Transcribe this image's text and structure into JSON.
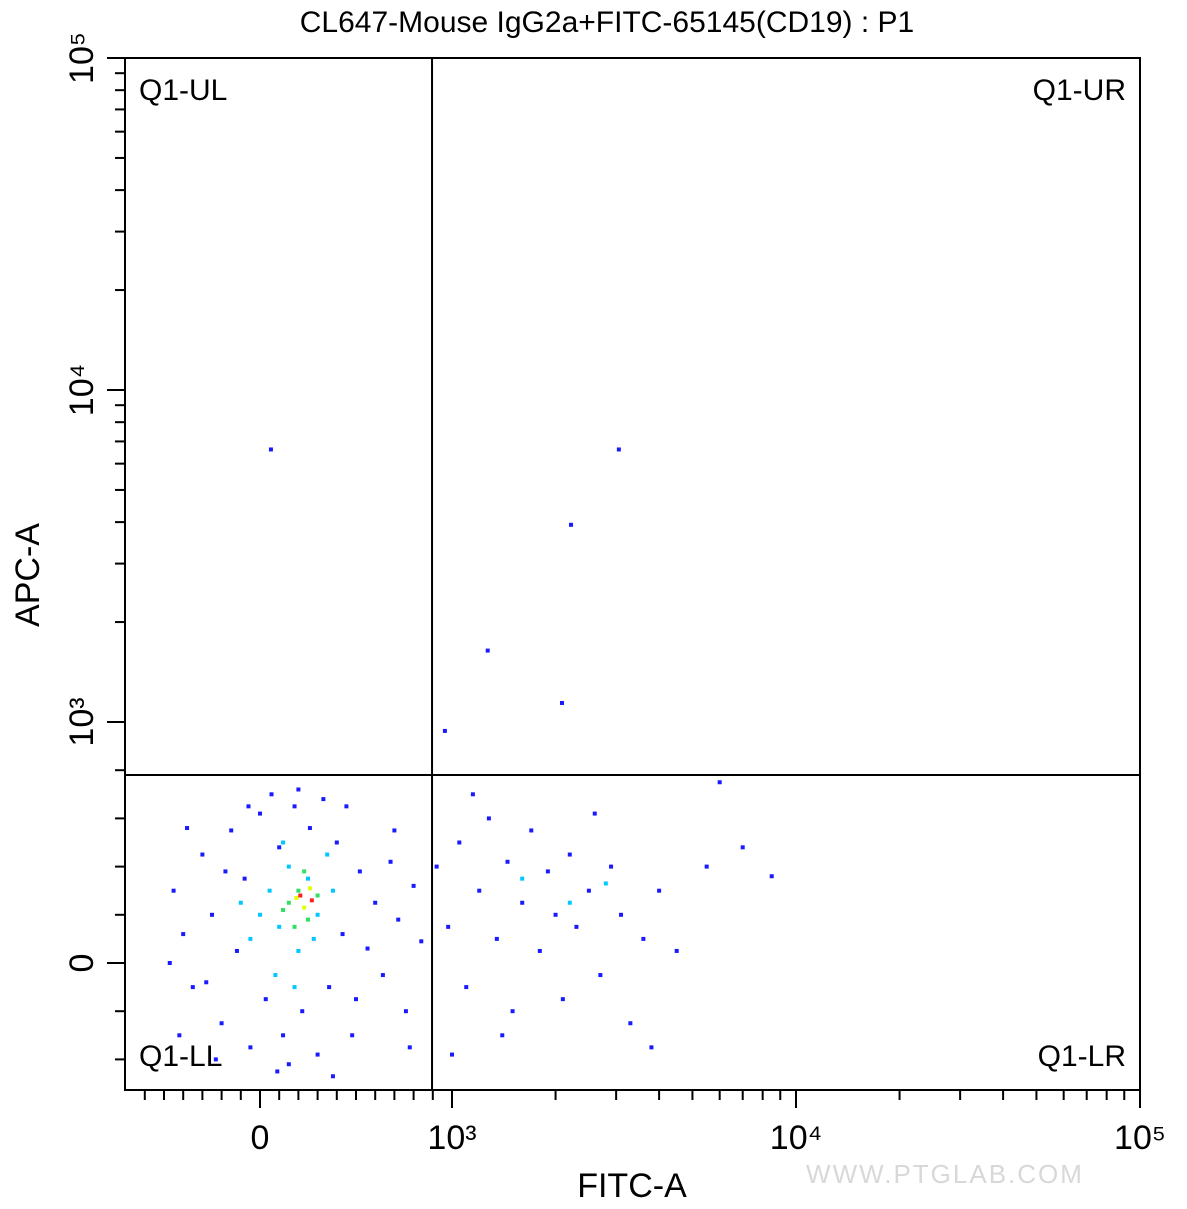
{
  "chart_data": {
    "type": "scatter",
    "scale": "logicle",
    "title": "CL647-Mouse IgG2a+FITC-65145(CD19) : P1",
    "x_label": "FITC-A",
    "y_label": "APC-A",
    "watermark": "WWW.PTGLAB.COM",
    "xlim": [
      -700,
      100000
    ],
    "ylim": [
      -527,
      100000
    ],
    "xticks": [
      0,
      {
        "value": 1000,
        "label": "10³"
      },
      {
        "value": 10000,
        "label": "10⁴"
      },
      {
        "value": 100000,
        "label": "10⁵"
      }
    ],
    "yticks": [
      0,
      {
        "value": 1000,
        "label": "10³"
      },
      {
        "value": 10000,
        "label": "10⁴"
      },
      {
        "value": 100000,
        "label": "10⁵"
      }
    ],
    "xminorticks": [
      -600,
      -500,
      -400,
      -300,
      -200,
      -100,
      100,
      200,
      300,
      400,
      500,
      600,
      700,
      800,
      900,
      2000,
      3000,
      4000,
      5000,
      6000,
      7000,
      8000,
      9000,
      20000,
      30000,
      40000,
      50000,
      60000,
      70000,
      80000,
      90000
    ],
    "yminorticks": [
      -400,
      -200,
      200,
      400,
      600,
      800,
      2000,
      3000,
      4000,
      5000,
      6000,
      7000,
      8000,
      9000,
      20000,
      30000,
      40000,
      50000,
      60000,
      70000,
      80000,
      90000
    ],
    "gates": {
      "x": 896,
      "y": 780
    },
    "quadrants": {
      "ul": "Q1-UL",
      "ur": "Q1-UR",
      "ll": "Q1-LL",
      "lr": "Q1-LR"
    },
    "series": [
      {
        "color": "#1a1aff",
        "x": [
          -450,
          -400,
          -350,
          -300,
          -250,
          -200,
          -150,
          -120,
          -80,
          -50,
          0,
          30,
          60,
          100,
          120,
          150,
          180,
          220,
          260,
          300,
          330,
          360,
          400,
          430,
          480,
          520,
          560,
          600,
          640,
          680,
          720,
          760,
          800,
          840,
          -420,
          -380,
          -280,
          -180,
          -60,
          90,
          200,
          450,
          500,
          700,
          780,
          -470,
          380,
          -230,
          920,
          980,
          1050,
          1100,
          1200,
          1280,
          1350,
          1450,
          1500,
          1600,
          1700,
          1800,
          1900,
          2000,
          2100,
          2200,
          2300,
          2500,
          2700,
          2900,
          3100,
          3300,
          3600,
          4000,
          4500,
          5500,
          6000,
          7000,
          8500,
          1150,
          1400,
          2600,
          1000,
          3800,
          57,
          3055,
          2218,
          1270,
          2088,
          963
        ],
        "y": [
          300,
          120,
          -100,
          450,
          200,
          -250,
          550,
          50,
          350,
          -350,
          620,
          -150,
          700,
          480,
          -300,
          -420,
          650,
          -200,
          560,
          -380,
          680,
          -100,
          500,
          120,
          -300,
          380,
          60,
          250,
          -50,
          420,
          180,
          -200,
          320,
          90,
          -300,
          560,
          -80,
          380,
          650,
          -450,
          720,
          650,
          -150,
          550,
          -350,
          0,
          -470,
          -400,
          400,
          150,
          500,
          -100,
          300,
          600,
          100,
          420,
          -200,
          250,
          550,
          50,
          380,
          200,
          -150,
          450,
          150,
          300,
          -50,
          400,
          200,
          -250,
          100,
          300,
          50,
          400,
          750,
          480,
          360,
          700,
          -300,
          620,
          -380,
          -350,
          6620,
          6620,
          3926,
          1641,
          1141,
          963
        ]
      },
      {
        "color": "#00c8ff",
        "x": [
          50,
          100,
          150,
          200,
          250,
          300,
          350,
          0,
          -50,
          80,
          180,
          280,
          120,
          380,
          -100,
          1600,
          2200,
          2800
        ],
        "y": [
          300,
          150,
          400,
          50,
          350,
          200,
          450,
          200,
          100,
          -50,
          -100,
          100,
          500,
          300,
          250,
          350,
          250,
          330
        ]
      },
      {
        "color": "#30e060",
        "x": [
          150,
          200,
          250,
          180,
          230,
          120,
          300
        ],
        "y": [
          250,
          300,
          180,
          150,
          380,
          220,
          280
        ]
      },
      {
        "color": "#e0ff00",
        "x": [
          190,
          230,
          260
        ],
        "y": [
          270,
          230,
          310
        ]
      },
      {
        "color": "#ff2020",
        "x": [
          210,
          270
        ],
        "y": [
          280,
          260
        ]
      }
    ]
  }
}
